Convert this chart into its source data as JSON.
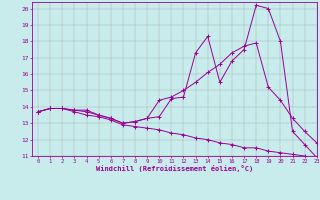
{
  "title": "",
  "xlabel": "Windchill (Refroidissement éolien,°C)",
  "ylabel": "",
  "bg_color": "#c8ecec",
  "line_color": "#990099",
  "grid_color": "#aaaaaa",
  "xlim": [
    -0.5,
    23
  ],
  "ylim": [
    11,
    20.4
  ],
  "xticks": [
    0,
    1,
    2,
    3,
    4,
    5,
    6,
    7,
    8,
    9,
    10,
    11,
    12,
    13,
    14,
    15,
    16,
    17,
    18,
    19,
    20,
    21,
    22,
    23
  ],
  "yticks": [
    11,
    12,
    13,
    14,
    15,
    16,
    17,
    18,
    19,
    20
  ],
  "line1_x": [
    0,
    1,
    2,
    3,
    4,
    5,
    6,
    7,
    8,
    9,
    10,
    11,
    12,
    13,
    14,
    15,
    16,
    17,
    18,
    19,
    20,
    21,
    22,
    23
  ],
  "line1_y": [
    13.7,
    13.9,
    13.9,
    13.8,
    13.8,
    13.5,
    13.3,
    13.0,
    13.1,
    13.3,
    13.4,
    14.5,
    14.6,
    17.3,
    18.3,
    15.5,
    16.8,
    17.5,
    20.2,
    20.0,
    18.0,
    12.5,
    11.7,
    10.9
  ],
  "line2_x": [
    0,
    1,
    2,
    3,
    4,
    5,
    6,
    7,
    8,
    9,
    10,
    11,
    12,
    13,
    14,
    15,
    16,
    17,
    18,
    19,
    20,
    21,
    22,
    23
  ],
  "line2_y": [
    13.7,
    13.9,
    13.9,
    13.8,
    13.7,
    13.5,
    13.3,
    13.0,
    13.1,
    13.3,
    14.4,
    14.6,
    15.0,
    15.5,
    16.1,
    16.6,
    17.3,
    17.7,
    17.9,
    15.2,
    14.4,
    13.3,
    12.5,
    11.8
  ],
  "line3_x": [
    0,
    1,
    2,
    3,
    4,
    5,
    6,
    7,
    8,
    9,
    10,
    11,
    12,
    13,
    14,
    15,
    16,
    17,
    18,
    19,
    20,
    21,
    22,
    23
  ],
  "line3_y": [
    13.7,
    13.9,
    13.9,
    13.7,
    13.5,
    13.4,
    13.2,
    12.9,
    12.8,
    12.7,
    12.6,
    12.4,
    12.3,
    12.1,
    12.0,
    11.8,
    11.7,
    11.5,
    11.5,
    11.3,
    11.2,
    11.1,
    11.0,
    10.8
  ],
  "marker": "+"
}
